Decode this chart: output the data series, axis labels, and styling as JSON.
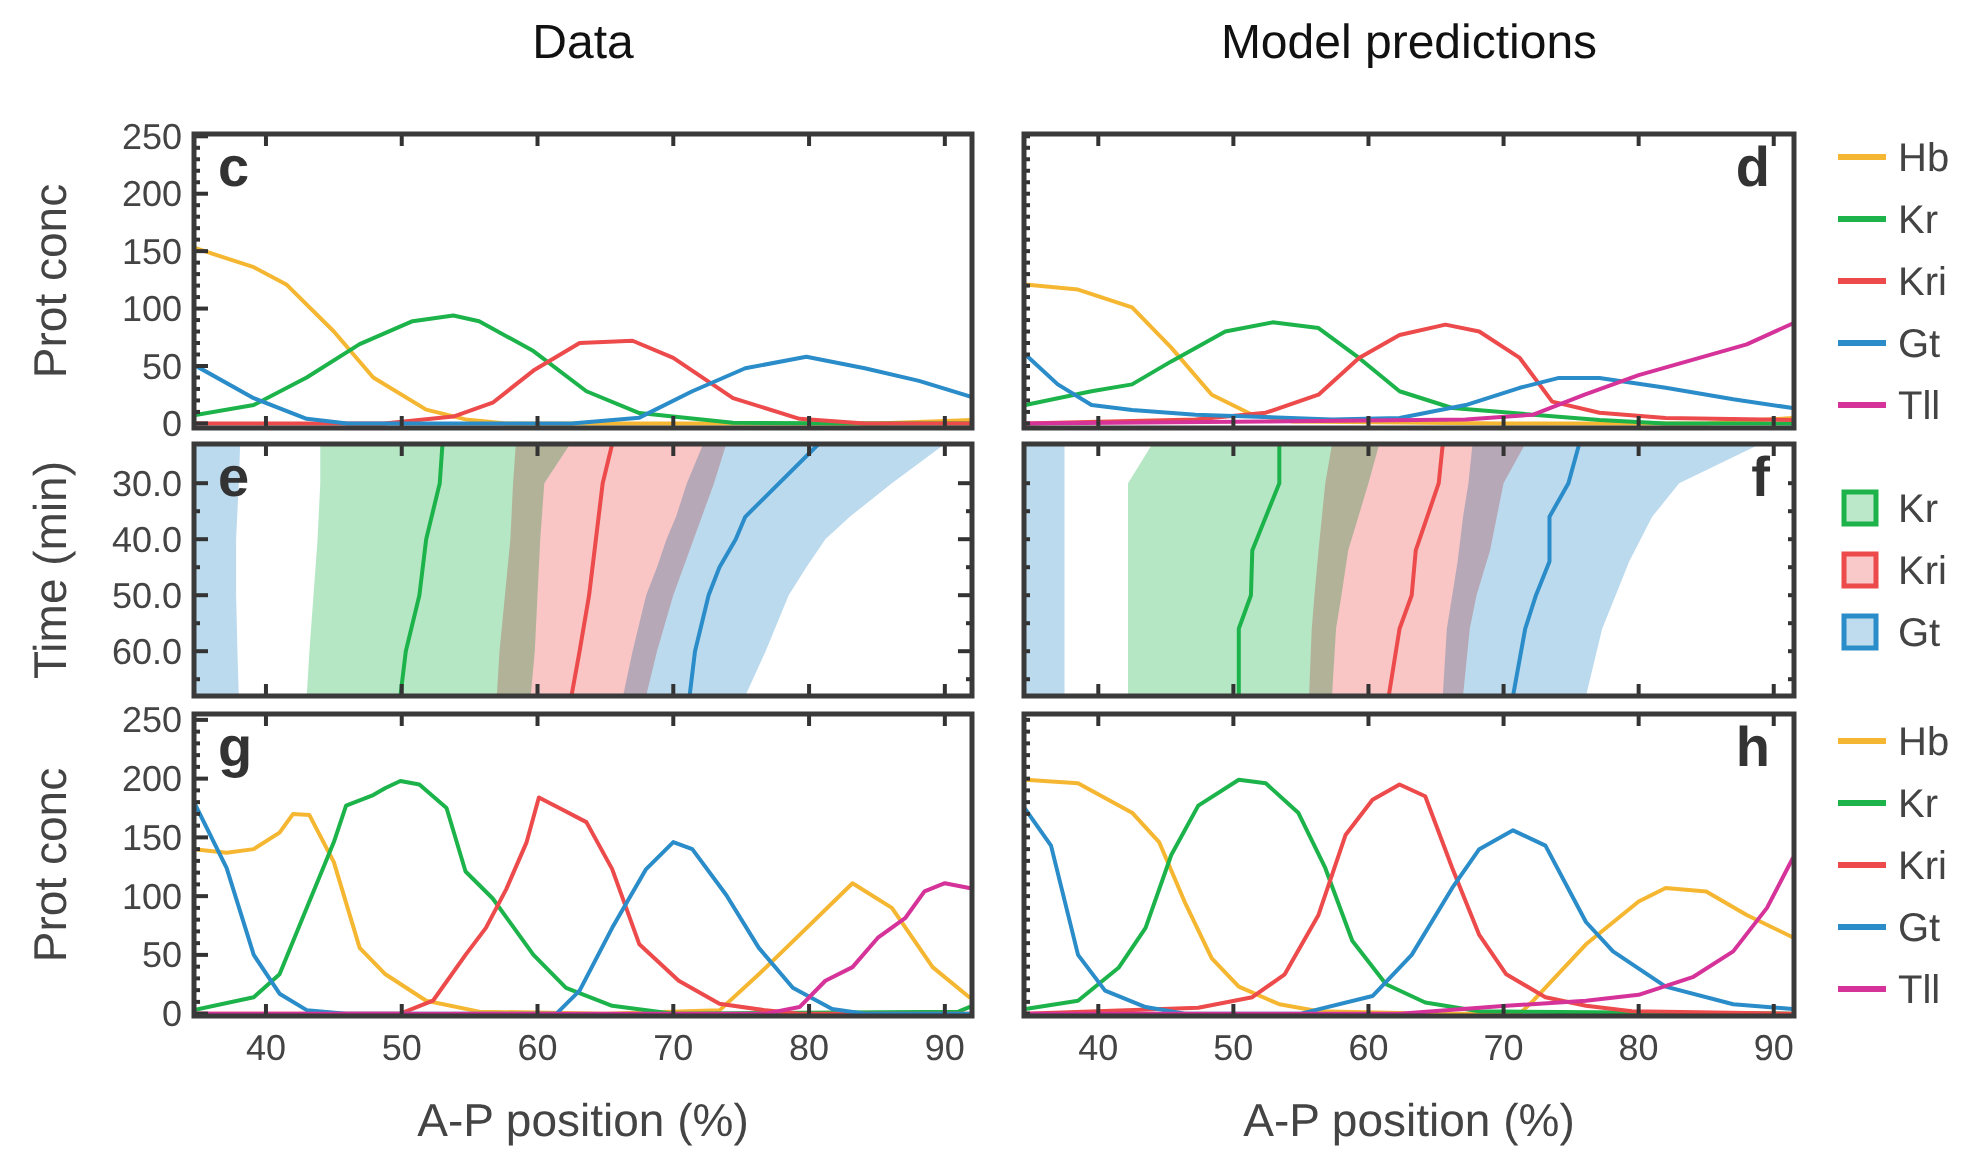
{
  "chart_data": [
    {
      "type": "line",
      "title": "Data",
      "ylabel": "Prot conc",
      "annotations": [
        "c"
      ],
      "xlim": [
        34.7,
        92
      ],
      "ylim": [
        -4,
        252
      ],
      "xticks": [
        40,
        50,
        60,
        70,
        80,
        90
      ],
      "yticks": [
        0,
        {
          "value": 10,
          "label": null
        },
        {
          "value": 20,
          "label": null
        },
        {
          "value": 30,
          "label": null
        },
        {
          "value": 40,
          "label": null
        },
        50,
        {
          "value": 60,
          "label": null
        },
        {
          "value": 70,
          "label": null
        },
        {
          "value": 80,
          "label": null
        },
        {
          "value": 90,
          "label": null
        },
        100,
        {
          "value": 110,
          "label": null
        },
        {
          "value": 120,
          "label": null
        },
        {
          "value": 130,
          "label": null
        },
        {
          "value": 140,
          "label": null
        },
        150,
        {
          "value": 160,
          "label": null
        },
        {
          "value": 170,
          "label": null
        },
        {
          "value": 180,
          "label": null
        },
        {
          "value": 190,
          "label": null
        },
        200,
        {
          "value": 210,
          "label": null
        },
        {
          "value": 220,
          "label": null
        },
        {
          "value": 230,
          "label": null
        },
        {
          "value": 240,
          "label": null
        },
        250
      ],
      "tick_labels": "y",
      "legend": false,
      "series": [
        {
          "color": "#f5b731",
          "x": [
            34.7,
            39.1,
            41.5,
            45,
            47.9,
            51.8,
            54.7,
            57.7,
            70,
            85,
            92
          ],
          "values": [
            153,
            136,
            121,
            80,
            40,
            12,
            3.5,
            0,
            0,
            0,
            3
          ]
        },
        {
          "color": "#1db34b",
          "x": [
            34.7,
            39.1,
            43,
            46.9,
            50.8,
            53.8,
            55.7,
            59.7,
            63.6,
            67.5,
            74.4,
            84.1,
            92
          ],
          "values": [
            7,
            16,
            40,
            69,
            89,
            94,
            89,
            63,
            28,
            9,
            0.5,
            0,
            0
          ]
        },
        {
          "color": "#ec4a4b",
          "x": [
            34.7,
            48.7,
            53.8,
            56.7,
            59.7,
            63.1,
            67,
            70,
            74.4,
            79.3,
            84.1,
            92
          ],
          "values": [
            0,
            0,
            6,
            18,
            46,
            70,
            72,
            57,
            22,
            4,
            0,
            0
          ]
        },
        {
          "color": "#2a8cc8",
          "x": [
            34.7,
            39.1,
            43,
            46,
            62.5,
            67.5,
            71.4,
            75.3,
            79.8,
            84.1,
            88.1,
            92
          ],
          "values": [
            51,
            22,
            4,
            0,
            0,
            5,
            28,
            48,
            58,
            48,
            37,
            23
          ]
        }
      ]
    },
    {
      "type": "line",
      "title": "Model predictions",
      "annotations": [
        "d"
      ],
      "xlim": [
        34.5,
        91.5
      ],
      "ylim": [
        -4,
        252
      ],
      "xticks": [
        40,
        50,
        60,
        70,
        80,
        90
      ],
      "yticks": [
        {
          "value": 0,
          "label": null
        },
        {
          "value": 10,
          "label": null
        },
        {
          "value": 20,
          "label": null
        },
        {
          "value": 30,
          "label": null
        },
        {
          "value": 40,
          "label": null
        },
        {
          "value": 50,
          "label": null
        },
        {
          "value": 60,
          "label": null
        },
        {
          "value": 70,
          "label": null
        },
        {
          "value": 80,
          "label": null
        },
        {
          "value": 90,
          "label": null
        },
        {
          "value": 100,
          "label": null
        },
        {
          "value": 110,
          "label": null
        },
        {
          "value": 120,
          "label": null
        },
        {
          "value": 130,
          "label": null
        },
        {
          "value": 140,
          "label": null
        },
        {
          "value": 150,
          "label": null
        },
        {
          "value": 160,
          "label": null
        },
        {
          "value": 170,
          "label": null
        },
        {
          "value": 180,
          "label": null
        },
        {
          "value": 190,
          "label": null
        },
        {
          "value": 200,
          "label": null
        },
        {
          "value": 210,
          "label": null
        },
        {
          "value": 220,
          "label": null
        },
        {
          "value": 230,
          "label": null
        },
        {
          "value": 240,
          "label": null
        },
        {
          "value": 250,
          "label": null
        }
      ],
      "tick_labels": false,
      "legend": "right",
      "series": [
        {
          "name": "Hb",
          "color": "#f5b731",
          "x": [
            34.6,
            38.5,
            42.5,
            45.4,
            48.4,
            51.4,
            54.4,
            70,
            85,
            91.4
          ],
          "values": [
            121,
            116.5,
            101,
            66,
            25,
            7.6,
            1.7,
            0,
            0,
            4.7
          ]
        },
        {
          "name": "Kr",
          "color": "#1db34b",
          "x": [
            34.6,
            39.5,
            42.5,
            45.4,
            49.4,
            52.9,
            56.3,
            59.3,
            62.3,
            66.2,
            72.2,
            77.1,
            82,
            91.4
          ],
          "values": [
            16,
            28,
            34,
            54,
            80,
            88,
            83,
            57,
            28,
            13.4,
            7.6,
            2.9,
            0,
            0
          ]
        },
        {
          "name": "Kri",
          "color": "#ec4a4b",
          "x": [
            34.6,
            47.2,
            52.4,
            56.3,
            59.3,
            62.3,
            65.7,
            68.2,
            71.2,
            73.6,
            77.1,
            82,
            91.4
          ],
          "values": [
            0,
            3.5,
            9.3,
            25,
            57,
            77,
            86,
            80,
            57,
            19,
            9.3,
            4.7,
            2.9
          ]
        },
        {
          "name": "Gt",
          "color": "#2a8cc8",
          "x": [
            34.6,
            37,
            39.5,
            42.5,
            47.2,
            57.3,
            62.3,
            67.2,
            71.2,
            74.1,
            77.1,
            82,
            87,
            91.4
          ],
          "values": [
            60,
            34,
            16,
            11.7,
            7.6,
            3.5,
            4.7,
            16,
            31,
            39.6,
            39.6,
            31,
            21,
            13.4
          ]
        },
        {
          "name": "Tll",
          "color": "#d6339a",
          "x": [
            34.6,
            52.4,
            67.2,
            72.2,
            76,
            80,
            84.5,
            88,
            91.4
          ],
          "values": [
            0,
            1.7,
            3.5,
            7.6,
            25,
            42,
            57,
            68.8,
            87
          ]
        }
      ]
    },
    {
      "type": "line",
      "orientation": "horizontal",
      "ylabel": "Time (min)",
      "annotations": [
        "e"
      ],
      "xlim": [
        34.7,
        92
      ],
      "ylim": [
        68,
        23
      ],
      "xticks": [
        40,
        50,
        60,
        70,
        80,
        90
      ],
      "yticks": [
        {
          "value": 30,
          "label": "30.0"
        },
        {
          "value": 35,
          "label": null
        },
        {
          "value": 40,
          "label": "40.0"
        },
        {
          "value": 45,
          "label": null
        },
        {
          "value": 50,
          "label": "50.0"
        },
        {
          "value": 55,
          "label": null
        },
        {
          "value": 60,
          "label": "60.0"
        },
        {
          "value": 65,
          "label": null
        }
      ],
      "tick_labels": "y",
      "legend": false,
      "series": [
        {
          "color": "#2a8cc8",
          "x": [
            23,
            30,
            40,
            50,
            60,
            68
          ],
          "values": [
            null,
            null,
            null,
            null,
            null,
            null
          ],
          "lower": [
            34.7,
            34.7,
            34.7,
            34.7,
            34.7,
            34.7
          ],
          "upper": [
            38.1,
            38.0,
            37.8,
            37.8,
            37.9,
            38.0
          ]
        },
        {
          "color": "#1db34b",
          "x": [
            23,
            30,
            40,
            50,
            60,
            68
          ],
          "values": [
            53.0,
            52.8,
            51.8,
            51.3,
            50.3,
            49.9
          ],
          "lower": [
            44.0,
            44.0,
            43.8,
            43.5,
            43.2,
            43.0
          ],
          "upper": [
            62.4,
            60.5,
            60.2,
            60.0,
            59.8,
            59.5
          ]
        },
        {
          "color": "#ec4a4b",
          "x": [
            23,
            30,
            40,
            50,
            60,
            68
          ],
          "values": [
            65.5,
            64.8,
            64.3,
            63.8,
            63.1,
            62.5
          ],
          "lower": [
            58.4,
            58.2,
            58.0,
            57.6,
            57.2,
            57.0
          ],
          "upper": [
            73.9,
            73.0,
            71.5,
            70.0,
            68.8,
            68.0
          ]
        },
        {
          "color": "#2a8cc8",
          "x": [
            23,
            30,
            36,
            40,
            45,
            50,
            60,
            68
          ],
          "values": [
            80.7,
            77.8,
            75.3,
            74.6,
            73.4,
            72.6,
            71.6,
            71.2
          ],
          "lower": [
            72.2,
            71.0,
            70.2,
            69.5,
            68.8,
            68.0,
            67.0,
            66.3
          ],
          "upper": [
            90.0,
            86.1,
            83.0,
            81.2,
            79.8,
            78.5,
            76.8,
            75.3
          ]
        }
      ]
    },
    {
      "type": "line",
      "orientation": "horizontal",
      "annotations": [
        "f"
      ],
      "xlim": [
        34.5,
        91.5
      ],
      "ylim": [
        68,
        23
      ],
      "xticks": [
        40,
        50,
        60,
        70,
        80,
        90
      ],
      "yticks": [
        {
          "value": 30,
          "label": null
        },
        {
          "value": 35,
          "label": null
        },
        {
          "value": 40,
          "label": null
        },
        {
          "value": 45,
          "label": null
        },
        {
          "value": 50,
          "label": null
        },
        {
          "value": 55,
          "label": null
        },
        {
          "value": 60,
          "label": null
        },
        {
          "value": 65,
          "label": null
        }
      ],
      "tick_labels": false,
      "legend": "right",
      "series": [
        {
          "color": "#2a8cc8",
          "x": [
            23,
            68
          ],
          "values": [
            null,
            null
          ],
          "lower": [
            34.5,
            34.5
          ],
          "upper": [
            37.5,
            37.5
          ]
        },
        {
          "name": "Kr",
          "color": "#1db34b",
          "x": [
            23,
            30,
            42,
            50,
            56,
            68
          ],
          "values": [
            53.4,
            53.4,
            51.4,
            51.3,
            50.4,
            50.4
          ],
          "lower": [
            44.0,
            42.2,
            42.2,
            42.2,
            42.2,
            42.2
          ],
          "upper": [
            60.8,
            60.0,
            58.5,
            58.0,
            57.6,
            57.3
          ]
        },
        {
          "name": "Kri",
          "color": "#ec4a4b",
          "x": [
            23,
            30,
            42,
            50,
            56,
            68
          ],
          "values": [
            65.5,
            65.2,
            63.5,
            63.2,
            62.3,
            61.5
          ],
          "lower": [
            57.3,
            56.8,
            56.3,
            56.0,
            55.8,
            55.6
          ],
          "upper": [
            71.6,
            70.0,
            69.0,
            68.0,
            67.5,
            67.0
          ]
        },
        {
          "name": "Gt",
          "color": "#2a8cc8",
          "x": [
            23,
            30,
            36,
            44,
            50,
            56,
            68
          ],
          "values": [
            75.6,
            74.8,
            73.4,
            73.4,
            72.4,
            71.6,
            70.7
          ],
          "lower": [
            67.7,
            67.4,
            67.0,
            66.6,
            66.2,
            65.8,
            65.5
          ],
          "upper": [
            89.0,
            83.0,
            81.0,
            79.3,
            78.3,
            77.3,
            76.1
          ]
        }
      ]
    },
    {
      "type": "line",
      "ylabel": "Prot conc",
      "xlabel": "A-P position (%)",
      "annotations": [
        "g"
      ],
      "xlim": [
        34.7,
        92
      ],
      "ylim": [
        -2,
        255
      ],
      "xticks": [
        40,
        50,
        60,
        70,
        80,
        90
      ],
      "yticks": [
        0,
        {
          "value": 10,
          "label": null
        },
        {
          "value": 20,
          "label": null
        },
        {
          "value": 30,
          "label": null
        },
        {
          "value": 40,
          "label": null
        },
        50,
        {
          "value": 60,
          "label": null
        },
        {
          "value": 70,
          "label": null
        },
        {
          "value": 80,
          "label": null
        },
        {
          "value": 90,
          "label": null
        },
        100,
        {
          "value": 110,
          "label": null
        },
        {
          "value": 120,
          "label": null
        },
        {
          "value": 130,
          "label": null
        },
        {
          "value": 140,
          "label": null
        },
        150,
        {
          "value": 160,
          "label": null
        },
        {
          "value": 170,
          "label": null
        },
        {
          "value": 180,
          "label": null
        },
        {
          "value": 190,
          "label": null
        },
        200,
        {
          "value": 210,
          "label": null
        },
        {
          "value": 220,
          "label": null
        },
        {
          "value": 230,
          "label": null
        },
        {
          "value": 240,
          "label": null
        },
        250
      ],
      "legend": false,
      "series": [
        {
          "color": "#f5b731",
          "x": [
            34.7,
            37.1,
            39.1,
            41,
            42,
            43.2,
            45,
            46.9,
            48.8,
            51.8,
            55.7,
            65,
            73.4,
            76.3,
            79.3,
            83.2,
            86.1,
            89.1,
            91.8
          ],
          "values": [
            140,
            137,
            140,
            154,
            170,
            169,
            129,
            56,
            33.5,
            11,
            1.7,
            0,
            2.8,
            33.5,
            67,
            111,
            90,
            39.6,
            14
          ]
        },
        {
          "color": "#1db34b",
          "x": [
            34.7,
            39.1,
            41,
            43,
            45,
            45.9,
            47.9,
            48.8,
            49.9,
            51.3,
            53.3,
            54.7,
            56.7,
            59.7,
            62.1,
            65.5,
            70,
            91,
            91.8
          ],
          "values": [
            3,
            14,
            33.5,
            90,
            146,
            177,
            186,
            192,
            198,
            195,
            175,
            121,
            98,
            50,
            22,
            6.7,
            0,
            1.7,
            5.6
          ]
        },
        {
          "color": "#ec4a4b",
          "x": [
            34.7,
            49.9,
            52.3,
            54.7,
            56.2,
            57.7,
            59.2,
            60.1,
            61.6,
            63.6,
            65.5,
            67.5,
            70.4,
            73.4,
            76.8,
            79.3,
            92
          ],
          "values": [
            0,
            0,
            11,
            50,
            73,
            106,
            146,
            184,
            175,
            163,
            123,
            59,
            28,
            8.4,
            2.8,
            0,
            0
          ]
        },
        {
          "color": "#2a8cc8",
          "x": [
            34.7,
            37.1,
            39.1,
            41,
            43,
            45.9,
            61.4,
            63.1,
            65.5,
            68,
            70,
            71.4,
            73.9,
            76.3,
            78.8,
            81.7,
            84.1,
            92
          ],
          "values": [
            180,
            124,
            50,
            17,
            3,
            0,
            0,
            19.6,
            73,
            123,
            146,
            140,
            101,
            56,
            22,
            4,
            0,
            0
          ]
        },
        {
          "color": "#d6339a",
          "x": [
            34.7,
            76.8,
            79.3,
            81.2,
            83.2,
            85.1,
            87.1,
            88.5,
            90,
            91.8
          ],
          "values": [
            0,
            0,
            5.6,
            28,
            39.6,
            65,
            81.6,
            104,
            111,
            107
          ]
        }
      ]
    },
    {
      "type": "line",
      "xlabel": "A-P position (%)",
      "annotations": [
        "h"
      ],
      "xlim": [
        34.5,
        91.5
      ],
      "ylim": [
        -2,
        255
      ],
      "xticks": [
        40,
        50,
        60,
        70,
        80,
        90
      ],
      "yticks": [
        {
          "value": 0,
          "label": null
        },
        {
          "value": 10,
          "label": null
        },
        {
          "value": 20,
          "label": null
        },
        {
          "value": 30,
          "label": null
        },
        {
          "value": 40,
          "label": null
        },
        {
          "value": 50,
          "label": null
        },
        {
          "value": 60,
          "label": null
        },
        {
          "value": 70,
          "label": null
        },
        {
          "value": 80,
          "label": null
        },
        {
          "value": 90,
          "label": null
        },
        {
          "value": 100,
          "label": null
        },
        {
          "value": 110,
          "label": null
        },
        {
          "value": 120,
          "label": null
        },
        {
          "value": 130,
          "label": null
        },
        {
          "value": 140,
          "label": null
        },
        {
          "value": 150,
          "label": null
        },
        {
          "value": 160,
          "label": null
        },
        {
          "value": 170,
          "label": null
        },
        {
          "value": 180,
          "label": null
        },
        {
          "value": 190,
          "label": null
        },
        {
          "value": 200,
          "label": null
        },
        {
          "value": 210,
          "label": null
        },
        {
          "value": 220,
          "label": null
        },
        {
          "value": 230,
          "label": null
        },
        {
          "value": 240,
          "label": null
        },
        {
          "value": 250,
          "label": null
        }
      ],
      "tick_labels": "x",
      "legend": "right",
      "series": [
        {
          "name": "Hb",
          "color": "#f5b731",
          "x": [
            34.6,
            38.5,
            42.5,
            44.5,
            46.4,
            48.4,
            50.4,
            53.4,
            56.3,
            65,
            71.2,
            72.2,
            76.1,
            80,
            82,
            85,
            88,
            91.4
          ],
          "values": [
            199,
            196,
            171,
            146,
            95,
            47,
            23,
            8,
            2,
            0,
            0,
            11,
            59,
            95.5,
            107,
            104,
            84,
            65
          ]
        },
        {
          "name": "Kr",
          "color": "#1db34b",
          "x": [
            34.6,
            38.5,
            41.5,
            43.5,
            45.4,
            47.4,
            50.4,
            52.4,
            54.8,
            56.8,
            58.8,
            61.3,
            64.2,
            68.2,
            91.4
          ],
          "values": [
            4,
            11,
            39,
            73,
            135,
            177,
            199,
            196,
            171,
            124,
            62,
            25,
            9.5,
            2,
            0
          ]
        },
        {
          "name": "Kri",
          "color": "#ec4a4b",
          "x": [
            34.6,
            47.4,
            51.4,
            53.8,
            56.3,
            58.3,
            60.3,
            62.3,
            64.2,
            66.2,
            68.2,
            70.2,
            73.1,
            76.1,
            79.5,
            91.4
          ],
          "values": [
            0,
            5,
            14,
            33.5,
            84,
            152,
            182,
            195,
            185,
            124,
            67,
            33.5,
            14,
            6.7,
            2,
            0
          ]
        },
        {
          "name": "Gt",
          "color": "#2a8cc8",
          "x": [
            34.6,
            36.5,
            38.5,
            40.5,
            43.5,
            46.4,
            55,
            60.3,
            63.2,
            66.2,
            68.2,
            70.7,
            73.1,
            76.1,
            78.1,
            82,
            87,
            91.4
          ],
          "values": [
            174,
            143,
            50,
            19.6,
            5.6,
            0,
            0,
            15,
            50,
            107,
            140,
            156,
            143,
            78,
            53,
            23,
            8,
            4
          ]
        },
        {
          "name": "Tll",
          "color": "#d6339a",
          "x": [
            34.6,
            62.3,
            70.2,
            76.1,
            80,
            84,
            87,
            89.5,
            91.4
          ],
          "values": [
            0,
            0,
            6.7,
            11,
            16,
            31,
            53,
            90,
            132
          ]
        }
      ]
    }
  ]
}
